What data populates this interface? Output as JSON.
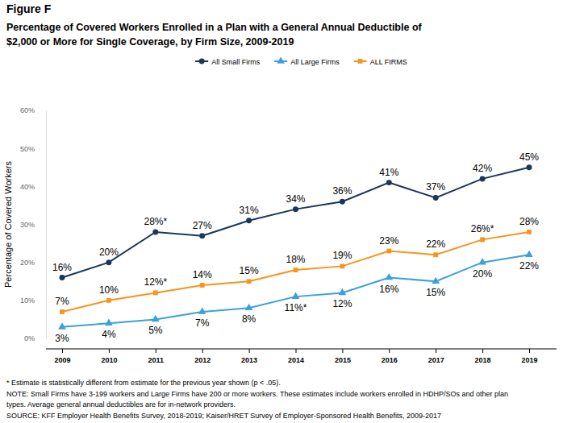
{
  "chart_data": {
    "type": "line",
    "title": "Figure F",
    "subtitle": [
      "Percentage of Covered Workers Enrolled in a Plan with a General Annual Deductible of",
      "$2,000 or More for Single Coverage, by Firm Size, 2009-2019"
    ],
    "y_label": "Percentage of Covered Workers",
    "categories": [
      "2009",
      "2010",
      "2011",
      "2012",
      "2013",
      "2014",
      "2015",
      "2016",
      "2017",
      "2018",
      "2019"
    ],
    "series": [
      {
        "name": "All Small Firms",
        "color": "#1b365d",
        "marker": "circle",
        "values": [
          16,
          20,
          28,
          27,
          31,
          34,
          36,
          41,
          37,
          42,
          45
        ],
        "value_labels": [
          "16%",
          "20%",
          "28%*",
          "27%",
          "31%",
          "34%",
          "36%",
          "41%",
          "37%",
          "42%",
          "45%"
        ]
      },
      {
        "name": "All Large Firms",
        "color": "#3aa0dc",
        "marker": "triangle",
        "values": [
          3,
          4,
          5,
          7,
          8,
          11,
          12,
          16,
          15,
          20,
          22
        ],
        "value_labels": [
          "3%",
          "4%",
          "5%",
          "7%",
          "8%",
          "11%*",
          "12%",
          "16%",
          "15%",
          "20%",
          "22%"
        ]
      },
      {
        "name": "ALL FIRMS",
        "color": "#f7941d",
        "marker": "square",
        "values": [
          7,
          10,
          12,
          14,
          15,
          18,
          19,
          23,
          22,
          26,
          28
        ],
        "value_labels": [
          "7%",
          "10%",
          "12%*",
          "14%",
          "15%",
          "18%",
          "19%",
          "23%",
          "22%",
          "26%*",
          "28%"
        ]
      }
    ],
    "ylim": [
      0,
      60
    ],
    "yticks": [
      {
        "value": 0,
        "label": "0%"
      },
      {
        "value": 10,
        "label": "10%"
      },
      {
        "value": 20,
        "label": "20%"
      },
      {
        "value": 30,
        "label": "30%"
      },
      {
        "value": 40,
        "label": "40%"
      },
      {
        "value": 50,
        "label": "50%"
      },
      {
        "value": 60,
        "label": "60%"
      }
    ],
    "grid": false,
    "legend": "top",
    "data_labels": true,
    "notes": [
      "* Estimate is statistically different from estimate for the previous year shown (p < .05).",
      "NOTE: Small Firms have 3-199 workers and Large Firms have 200 or more workers. These estimates include workers enrolled in HDHP/SOs and other plan",
      "types. Average general annual deductibles are for in-network providers.",
      "SOURCE: KFF Employer Health Benefits Survey, 2018-2019; Kaiser/HRET Survey of Employer-Sponsored Health Benefits, 2009-2017"
    ]
  }
}
